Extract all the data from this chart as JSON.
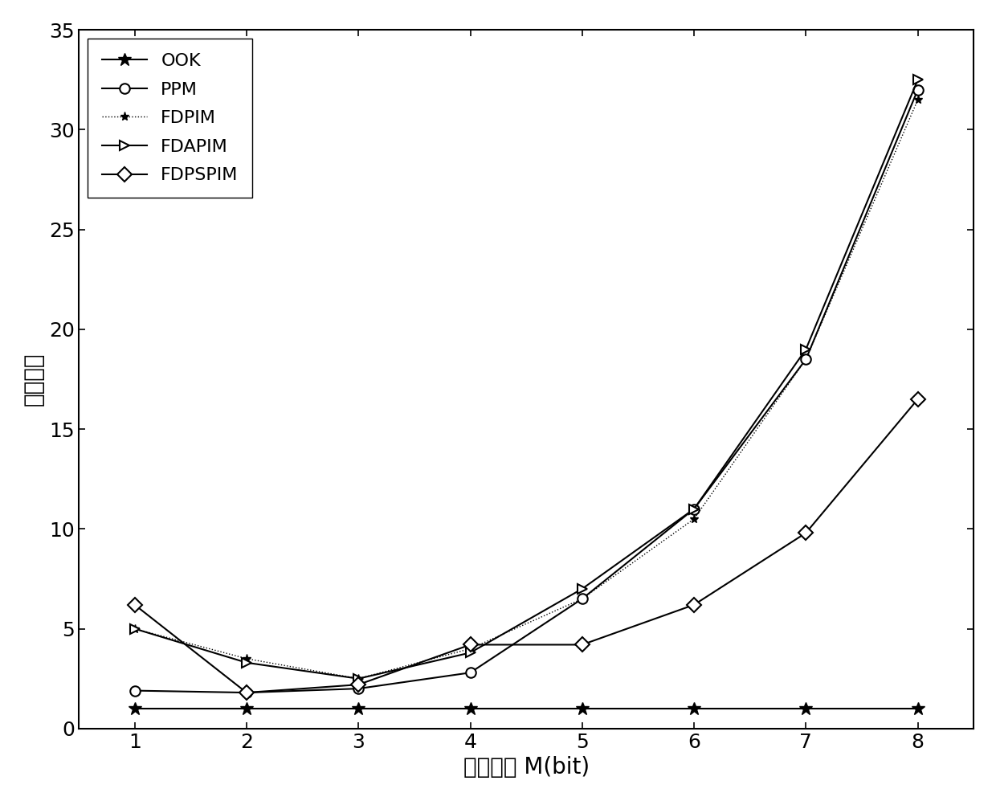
{
  "x": [
    1,
    2,
    3,
    4,
    5,
    6,
    7,
    8
  ],
  "OOK": [
    1.0,
    1.0,
    1.0,
    1.0,
    1.0,
    1.0,
    1.0,
    1.0
  ],
  "PPM": [
    1.9,
    1.8,
    2.0,
    2.8,
    6.5,
    11.0,
    18.5,
    32.0
  ],
  "FDPIM": [
    5.0,
    3.5,
    2.5,
    4.0,
    6.5,
    10.5,
    18.5,
    31.5
  ],
  "FDAPIM": [
    5.0,
    3.3,
    2.5,
    3.8,
    7.0,
    11.0,
    19.0,
    32.5
  ],
  "FDPSPIM": [
    6.2,
    1.8,
    2.2,
    4.2,
    4.2,
    6.2,
    9.8,
    16.5
  ],
  "xlabel": "调制阶数 M(bit)",
  "ylabel": "频谱效率",
  "xlim": [
    0.5,
    8.5
  ],
  "ylim": [
    0,
    35
  ],
  "yticks": [
    0,
    5,
    10,
    15,
    20,
    25,
    30,
    35
  ],
  "xticks": [
    1,
    2,
    3,
    4,
    5,
    6,
    7,
    8
  ],
  "legend_labels": [
    "OOK",
    "PPM",
    "FDPIM",
    "FDAPIM",
    "FDPSPIM"
  ],
  "line_color": "#000000",
  "background_color": "#ffffff"
}
